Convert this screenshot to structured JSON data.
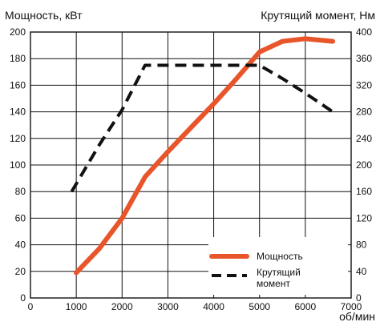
{
  "chart_data": {
    "type": "line",
    "ylabel_left": "Мощность, кВт",
    "ylabel_right": "Крутящий момент, Нм",
    "xlabel": "об/мин",
    "xlim": [
      0,
      7000
    ],
    "ylim_left": [
      0,
      200
    ],
    "ylim_right": [
      0,
      400
    ],
    "x_ticks": [
      "0",
      "1000",
      "2000",
      "3000",
      "4000",
      "5000",
      "6000",
      "7000"
    ],
    "y_left_ticks": [
      "0",
      "20",
      "40",
      "60",
      "80",
      "100",
      "120",
      "140",
      "160",
      "180",
      "200"
    ],
    "y_right_ticks": [
      "0",
      "40",
      "80",
      "120",
      "160",
      "200",
      "240",
      "280",
      "320",
      "360",
      "400"
    ],
    "grid": true,
    "legend_position": "bottom-right",
    "series": [
      {
        "name": "Мощность",
        "axis": "left",
        "style": "solid",
        "color": "#e8552a",
        "points": [
          [
            1000,
            19
          ],
          [
            1500,
            37
          ],
          [
            2000,
            60
          ],
          [
            2500,
            91
          ],
          [
            3000,
            110
          ],
          [
            3500,
            128
          ],
          [
            4000,
            146
          ],
          [
            4500,
            165
          ],
          [
            5000,
            185
          ],
          [
            5500,
            193
          ],
          [
            6000,
            195
          ],
          [
            6600,
            193
          ]
        ]
      },
      {
        "name": "Крутящий момент",
        "axis": "right",
        "style": "dashed",
        "color": "#111111",
        "points": [
          [
            900,
            160
          ],
          [
            1500,
            230
          ],
          [
            2000,
            283
          ],
          [
            2500,
            350
          ],
          [
            3000,
            350
          ],
          [
            4000,
            350
          ],
          [
            5000,
            350
          ],
          [
            5500,
            330
          ],
          [
            6000,
            308
          ],
          [
            6600,
            280
          ]
        ]
      }
    ]
  },
  "legend": {
    "power_label": "Мощность",
    "torque_label_line1": "Крутящий",
    "torque_label_line2": "момент"
  },
  "colors": {
    "power": "#e8552a",
    "torque": "#111111",
    "grid": "#111111"
  }
}
